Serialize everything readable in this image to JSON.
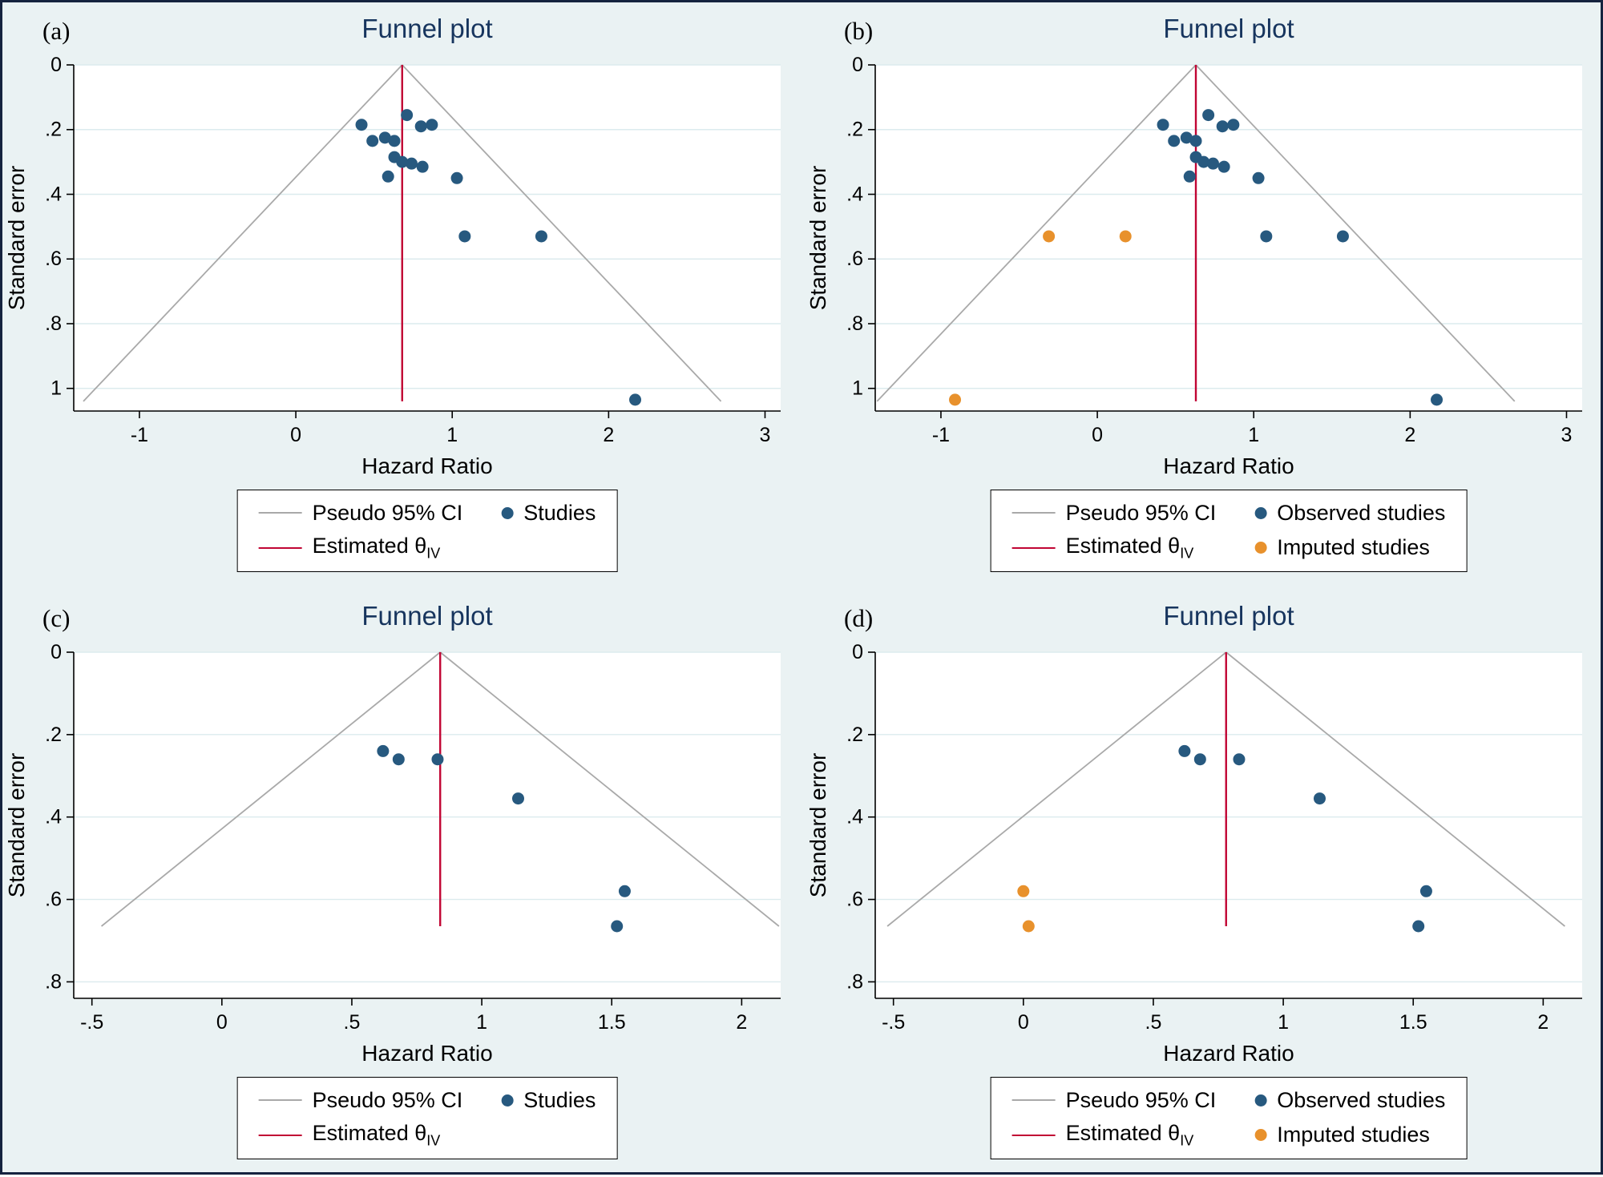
{
  "colors": {
    "bg": "#eaf2f3",
    "border": "#15233f",
    "navy": "#27597f",
    "orange": "#e8912c",
    "red": "#c10534",
    "gray": "#a9a9a9",
    "grid": "#dcebee",
    "title": "#17355e"
  },
  "chart_data": [
    {
      "panel_label": "(a)",
      "type": "scatter",
      "title": "Funnel plot",
      "xlabel": "Hazard Ratio",
      "ylabel": "Standard error",
      "xlim": [
        -1.42,
        3.1
      ],
      "ylim": [
        0,
        1.07
      ],
      "x_ticks": [
        -1,
        0,
        1,
        2,
        3
      ],
      "x_tick_labels": [
        "-1",
        "0",
        "1",
        "2",
        "3"
      ],
      "y_ticks": [
        0,
        0.2,
        0.4,
        0.6,
        0.8,
        1
      ],
      "y_tick_labels": [
        "0",
        ".2",
        ".4",
        ".6",
        ".8",
        "1"
      ],
      "theta": 0.68,
      "funnel_max_se": 1.04,
      "series": [
        {
          "name": "Studies",
          "color_key": "navy",
          "points": [
            [
              0.42,
              0.185
            ],
            [
              0.49,
              0.235
            ],
            [
              0.57,
              0.225
            ],
            [
              0.63,
              0.235
            ],
            [
              0.71,
              0.155
            ],
            [
              0.8,
              0.19
            ],
            [
              0.87,
              0.185
            ],
            [
              0.63,
              0.285
            ],
            [
              0.68,
              0.3
            ],
            [
              0.74,
              0.305
            ],
            [
              0.81,
              0.315
            ],
            [
              0.59,
              0.345
            ],
            [
              1.03,
              0.35
            ],
            [
              1.08,
              0.53
            ],
            [
              1.57,
              0.53
            ],
            [
              2.17,
              1.035
            ]
          ]
        }
      ],
      "legend": {
        "ci": "Pseudo 95% CI",
        "estimate": "Estimated θ",
        "estimate_sub": "IV",
        "studies": "Studies"
      }
    },
    {
      "panel_label": "(b)",
      "type": "scatter",
      "title": "Funnel plot",
      "xlabel": "Hazard Ratio",
      "ylabel": "Standard error",
      "xlim": [
        -1.42,
        3.1
      ],
      "ylim": [
        0,
        1.07
      ],
      "x_ticks": [
        -1,
        0,
        1,
        2,
        3
      ],
      "x_tick_labels": [
        "-1",
        "0",
        "1",
        "2",
        "3"
      ],
      "y_ticks": [
        0,
        0.2,
        0.4,
        0.6,
        0.8,
        1
      ],
      "y_tick_labels": [
        "0",
        ".2",
        ".4",
        ".6",
        ".8",
        "1"
      ],
      "theta": 0.63,
      "funnel_max_se": 1.04,
      "series": [
        {
          "name": "Observed studies",
          "color_key": "navy",
          "points": [
            [
              0.42,
              0.185
            ],
            [
              0.49,
              0.235
            ],
            [
              0.57,
              0.225
            ],
            [
              0.63,
              0.235
            ],
            [
              0.71,
              0.155
            ],
            [
              0.8,
              0.19
            ],
            [
              0.87,
              0.185
            ],
            [
              0.63,
              0.285
            ],
            [
              0.68,
              0.3
            ],
            [
              0.74,
              0.305
            ],
            [
              0.81,
              0.315
            ],
            [
              0.59,
              0.345
            ],
            [
              1.03,
              0.35
            ],
            [
              1.08,
              0.53
            ],
            [
              1.57,
              0.53
            ],
            [
              2.17,
              1.035
            ]
          ]
        },
        {
          "name": "Imputed studies",
          "color_key": "orange",
          "points": [
            [
              -0.31,
              0.53
            ],
            [
              0.18,
              0.53
            ],
            [
              -0.91,
              1.035
            ]
          ]
        }
      ],
      "legend": {
        "ci": "Pseudo 95% CI",
        "estimate": "Estimated θ",
        "estimate_sub": "IV",
        "studies": "Observed studies",
        "imputed": "Imputed studies"
      }
    },
    {
      "panel_label": "(c)",
      "type": "scatter",
      "title": "Funnel plot",
      "xlabel": "Hazard Ratio",
      "ylabel": "Standard error",
      "xlim": [
        -0.57,
        2.15
      ],
      "ylim": [
        0,
        0.84
      ],
      "x_ticks": [
        -0.5,
        0,
        0.5,
        1,
        1.5,
        2
      ],
      "x_tick_labels": [
        "-.5",
        "0",
        ".5",
        "1",
        "1.5",
        "2"
      ],
      "y_ticks": [
        0,
        0.2,
        0.4,
        0.6,
        0.8
      ],
      "y_tick_labels": [
        "0",
        ".2",
        ".4",
        ".6",
        ".8"
      ],
      "theta": 0.84,
      "funnel_max_se": 0.665,
      "series": [
        {
          "name": "Studies",
          "color_key": "navy",
          "points": [
            [
              0.62,
              0.24
            ],
            [
              0.68,
              0.26
            ],
            [
              0.83,
              0.26
            ],
            [
              1.14,
              0.355
            ],
            [
              1.55,
              0.58
            ],
            [
              1.52,
              0.665
            ]
          ]
        }
      ],
      "legend": {
        "ci": "Pseudo 95% CI",
        "estimate": "Estimated θ",
        "estimate_sub": "IV",
        "studies": "Studies"
      }
    },
    {
      "panel_label": "(d)",
      "type": "scatter",
      "title": "Funnel plot",
      "xlabel": "Hazard Ratio",
      "ylabel": "Standard error",
      "xlim": [
        -0.57,
        2.15
      ],
      "ylim": [
        0,
        0.84
      ],
      "x_ticks": [
        -0.5,
        0,
        0.5,
        1,
        1.5,
        2
      ],
      "x_tick_labels": [
        "-.5",
        "0",
        ".5",
        "1",
        "1.5",
        "2"
      ],
      "y_ticks": [
        0,
        0.2,
        0.4,
        0.6,
        0.8
      ],
      "y_tick_labels": [
        "0",
        ".2",
        ".4",
        ".6",
        ".8"
      ],
      "theta": 0.78,
      "funnel_max_se": 0.665,
      "series": [
        {
          "name": "Observed studies",
          "color_key": "navy",
          "points": [
            [
              0.62,
              0.24
            ],
            [
              0.68,
              0.26
            ],
            [
              0.83,
              0.26
            ],
            [
              1.14,
              0.355
            ],
            [
              1.55,
              0.58
            ],
            [
              1.52,
              0.665
            ]
          ]
        },
        {
          "name": "Imputed studies",
          "color_key": "orange",
          "points": [
            [
              0.0,
              0.58
            ],
            [
              0.02,
              0.665
            ]
          ]
        }
      ],
      "legend": {
        "ci": "Pseudo 95% CI",
        "estimate": "Estimated θ",
        "estimate_sub": "IV",
        "studies": "Observed studies",
        "imputed": "Imputed studies"
      }
    }
  ]
}
